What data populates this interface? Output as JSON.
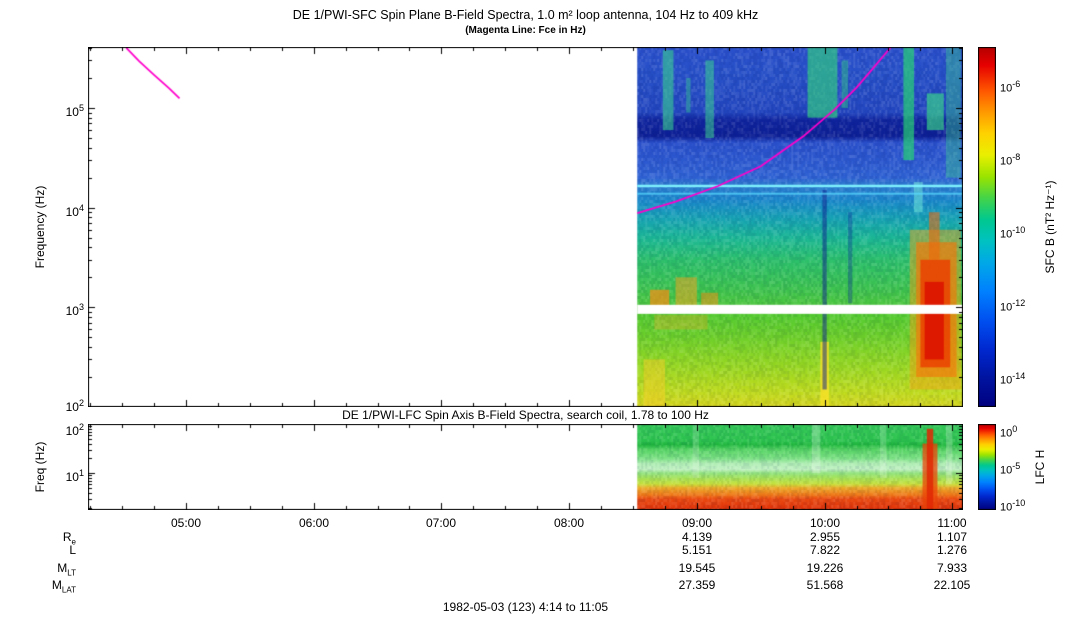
{
  "caption": "1982-05-03 (123) 4:14 to 11:05",
  "xticks": [
    "05:00",
    "06:00",
    "07:00",
    "08:00",
    "09:00",
    "10:00",
    "11:00"
  ],
  "ephemeris": {
    "columns": [
      "09:00",
      "10:00",
      "11:00"
    ],
    "rows": [
      {
        "label": "R",
        "sub": "e",
        "values": [
          "4.139",
          "2.955",
          "1.107"
        ]
      },
      {
        "label": "L",
        "sub": "",
        "values": [
          "5.151",
          "7.822",
          "1.276"
        ]
      },
      {
        "label": "M",
        "sub": "LT",
        "values": [
          "19.545",
          "19.226",
          "7.933"
        ]
      },
      {
        "label": "M",
        "sub": "LAT",
        "values": [
          "27.359",
          "51.568",
          "22.105"
        ]
      }
    ]
  },
  "colorbar_stops": [
    [
      0,
      "#b40000"
    ],
    [
      0.05,
      "#e60000"
    ],
    [
      0.12,
      "#ff5500"
    ],
    [
      0.18,
      "#ff9900"
    ],
    [
      0.24,
      "#ffd200"
    ],
    [
      0.3,
      "#eaf000"
    ],
    [
      0.36,
      "#9ae400"
    ],
    [
      0.42,
      "#44d44a"
    ],
    [
      0.48,
      "#00c890"
    ],
    [
      0.54,
      "#00c2c2"
    ],
    [
      0.6,
      "#00a8e8"
    ],
    [
      0.68,
      "#0080ff"
    ],
    [
      0.76,
      "#0050f0"
    ],
    [
      0.84,
      "#0028d0"
    ],
    [
      0.92,
      "#0014a0"
    ],
    [
      1,
      "#000080"
    ]
  ],
  "chart_data": [
    {
      "type": "heatmap",
      "title": "DE 1/PWI-SFC  Spin Plane B-Field Spectra, 1.0 m² loop antenna, 104 Hz to 409 kHz",
      "subtitle": "(Magenta Line: Fce in Hz)",
      "ylabel": "Frequency (Hz)",
      "colorbar_label": "SFC B (nT² Hz⁻¹)",
      "time_range": [
        "04:14",
        "11:05"
      ],
      "data_start": "08:32",
      "freq_range_hz": [
        100,
        409000
      ],
      "yticks": [
        {
          "base": "10",
          "exp": "5"
        },
        {
          "base": "10",
          "exp": "4"
        },
        {
          "base": "10",
          "exp": "3"
        },
        {
          "base": "10",
          "exp": "2"
        }
      ],
      "colorbar_ticks": [
        {
          "base": "10",
          "exp": "-6"
        },
        {
          "base": "10",
          "exp": "-8"
        },
        {
          "base": "10",
          "exp": "-10"
        },
        {
          "base": "10",
          "exp": "-12"
        },
        {
          "base": "10",
          "exp": "-14"
        }
      ],
      "gradient_stops": [
        [
          409000,
          "#2b50cc"
        ],
        [
          220000,
          "#2750c8"
        ],
        [
          90000,
          "#2346c0"
        ],
        [
          75000,
          "#10249e"
        ],
        [
          52000,
          "#0e2096"
        ],
        [
          45000,
          "#2a50cc"
        ],
        [
          20000,
          "#2f62d4"
        ],
        [
          17000,
          "#2e7ad0"
        ],
        [
          12000,
          "#1b88cc"
        ],
        [
          8000,
          "#17a2b6"
        ],
        [
          5000,
          "#1cb896"
        ],
        [
          3000,
          "#2cc06c"
        ],
        [
          1500,
          "#3ec44e"
        ],
        [
          1060,
          "#4cc63e"
        ],
        [
          860,
          "#52ca30"
        ],
        [
          500,
          "#6ed02a"
        ],
        [
          260,
          "#97d822"
        ],
        [
          140,
          "#c0dc1e"
        ],
        [
          100,
          "#d6d61e"
        ]
      ],
      "features": [
        {
          "t0": "08:35",
          "t1": "08:45",
          "f0": 100,
          "f1": 300,
          "color": "rgba(245,205,40,0.5)"
        },
        {
          "t0": "08:44",
          "t1": "08:49",
          "f0": 60000,
          "f1": 380000,
          "color": "rgba(60,220,140,0.55)"
        },
        {
          "t0": "08:55",
          "t1": "08:57",
          "f0": 90000,
          "f1": 200000,
          "color": "rgba(60,220,140,0.4)"
        },
        {
          "t0": "09:04",
          "t1": "09:08",
          "f0": 50000,
          "f1": 300000,
          "color": "rgba(60,220,140,0.5)"
        },
        {
          "t0": "08:38",
          "t1": "08:47",
          "f0": 900,
          "f1": 1500,
          "color": "rgba(250,140,20,0.7)"
        },
        {
          "t0": "08:50",
          "t1": "09:00",
          "f0": 950,
          "f1": 2000,
          "color": "rgba(250,160,30,0.5)"
        },
        {
          "t0": "09:02",
          "t1": "09:10",
          "f0": 900,
          "f1": 1400,
          "color": "rgba(250,140,20,0.5)"
        },
        {
          "t0": "08:40",
          "t1": "09:05",
          "f0": 600,
          "f1": 840,
          "color": "rgba(250,170,40,0.3)"
        },
        {
          "t0": "09:52",
          "t1": "10:06",
          "f0": 80000,
          "f1": 400000,
          "color": "rgba(50,220,120,0.6)"
        },
        {
          "t0": "10:08",
          "t1": "10:11",
          "f0": 100000,
          "f1": 300000,
          "color": "rgba(50,220,120,0.4)"
        },
        {
          "t0": "09:58",
          "t1": "10:02",
          "f0": 100,
          "f1": 450,
          "color": "rgba(250,225,40,0.8)"
        },
        {
          "t0": "09:59",
          "t1": "10:01",
          "f0": 150,
          "f1": 15000,
          "color": "rgba(10,30,140,0.5)"
        },
        {
          "t0": "10:11",
          "t1": "10:13",
          "f0": 1100,
          "f1": 9000,
          "color": "rgba(10,40,150,0.35)"
        },
        {
          "t0": "10:37",
          "t1": "10:42",
          "f0": 30000,
          "f1": 409000,
          "color": "rgba(40,220,110,0.65)"
        },
        {
          "t0": "10:42",
          "t1": "10:46",
          "f0": 9000,
          "f1": 18000,
          "color": "rgba(120,240,220,0.5)"
        },
        {
          "t0": "10:48",
          "t1": "10:56",
          "f0": 60000,
          "f1": 140000,
          "color": "rgba(60,230,130,0.6)"
        },
        {
          "t0": "10:57",
          "t1": "11:04",
          "f0": 20000,
          "f1": 409000,
          "color": "rgba(60,210,140,0.4)"
        },
        {
          "t0": "10:40",
          "t1": "11:04",
          "f0": 150,
          "f1": 6000,
          "color": "rgba(250,160,20,0.45)"
        },
        {
          "t0": "10:43",
          "t1": "11:02",
          "f0": 200,
          "f1": 4500,
          "color": "rgba(245,120,10,0.65)"
        },
        {
          "t0": "10:45",
          "t1": "10:59",
          "f0": 250,
          "f1": 3000,
          "color": "rgba(235,60,0,0.8)"
        },
        {
          "t0": "10:47",
          "t1": "10:56",
          "f0": 300,
          "f1": 1800,
          "color": "rgba(220,20,0,0.9)"
        },
        {
          "t0": "10:49",
          "t1": "10:54",
          "f0": 3000,
          "f1": 9000,
          "color": "rgba(240,100,10,0.55)"
        }
      ],
      "hlines": [
        {
          "f": 16500,
          "w": 2.5,
          "color": "rgba(130,245,255,0.95)"
        },
        {
          "f": 13800,
          "w": 2,
          "color": "rgba(90,220,255,0.7)"
        }
      ],
      "gaps": [
        {
          "f0": 860,
          "f1": 1060
        }
      ],
      "line_color": "#ff00cc",
      "line_segments": [
        [
          [
            "04:32",
            400000
          ],
          [
            "04:38",
            295000
          ],
          [
            "04:45",
            215000
          ],
          [
            "04:52",
            158000
          ],
          [
            "04:57",
            125000
          ]
        ],
        [
          [
            "08:32",
            8800
          ],
          [
            "08:50",
            11500
          ],
          [
            "09:10",
            16500
          ],
          [
            "09:30",
            26000
          ],
          [
            "09:50",
            52000
          ],
          [
            "10:05",
            98000
          ],
          [
            "10:15",
            160000
          ],
          [
            "10:22",
            240000
          ],
          [
            "10:28",
            340000
          ],
          [
            "10:31",
            405000
          ]
        ]
      ]
    },
    {
      "type": "heatmap",
      "title": "DE 1/PWI-LFC  Spin Axis B-Field Spectra, search coil, 1.78 to 100 Hz",
      "ylabel": "Freq (Hz)",
      "colorbar_label": "LFC H",
      "time_range": [
        "04:14",
        "11:05"
      ],
      "data_start": "08:32",
      "freq_range_hz": [
        1.78,
        100
      ],
      "yticks": [
        {
          "base": "10",
          "exp": "2"
        },
        {
          "base": "10",
          "exp": "1"
        }
      ],
      "colorbar_ticks": [
        {
          "base": "10",
          "exp": "0"
        },
        {
          "base": "10",
          "exp": "-5"
        },
        {
          "base": "10",
          "exp": "-10"
        }
      ],
      "gradient_stops": [
        [
          100,
          "#35c858"
        ],
        [
          45,
          "#2cc44e"
        ],
        [
          38,
          "#20b83e"
        ],
        [
          30,
          "#56d464"
        ],
        [
          20,
          "#7ce284"
        ],
        [
          16,
          "#aeeeb2"
        ],
        [
          12,
          "#c2f2c4"
        ],
        [
          10,
          "#92e47e"
        ],
        [
          8,
          "#a6e45a"
        ],
        [
          6,
          "#c8e23c"
        ],
        [
          5,
          "#ecaa28"
        ],
        [
          3.6,
          "#f07818"
        ],
        [
          3.0,
          "#ea4a10"
        ],
        [
          1.78,
          "#e03008"
        ]
      ],
      "features": [
        {
          "t0": "08:58",
          "t1": "09:01",
          "f0": 8,
          "f1": 100,
          "color": "rgba(255,255,255,0.18)"
        },
        {
          "t0": "09:54",
          "t1": "09:58",
          "f0": 10,
          "f1": 100,
          "color": "rgba(255,255,255,0.25)"
        },
        {
          "t0": "10:26",
          "t1": "10:29",
          "f0": 8,
          "f1": 100,
          "color": "rgba(255,255,255,0.2)"
        },
        {
          "t0": "10:46",
          "t1": "10:53",
          "f0": 1.78,
          "f1": 40,
          "color": "rgba(235,70,10,0.75)"
        },
        {
          "t0": "10:48",
          "t1": "10:51",
          "f0": 1.78,
          "f1": 80,
          "color": "rgba(225,40,5,0.85)"
        },
        {
          "t0": "10:57",
          "t1": "11:00",
          "f0": 6,
          "f1": 100,
          "color": "rgba(255,255,255,0.22)"
        }
      ],
      "hlines": [],
      "gaps": [],
      "line_color": "#ff00cc",
      "line_segments": []
    }
  ]
}
